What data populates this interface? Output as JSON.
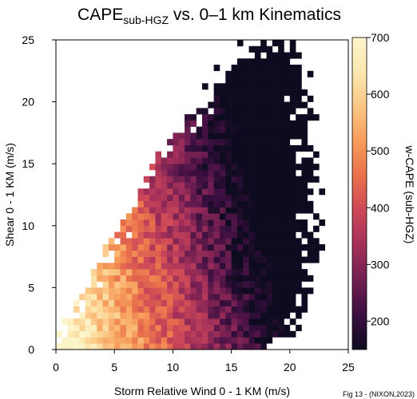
{
  "chart_data": {
    "type": "heatmap",
    "title": {
      "main": "CAPE",
      "subscript": "sub-HGZ",
      "rest": " vs. 0–1 km Kinematics"
    },
    "xlabel": "Storm Relative Wind 0 - 1 KM (m/s)",
    "ylabel": "Shear 0 - 1 KM (m/s)",
    "xlim": [
      0,
      25
    ],
    "ylim": [
      0,
      25
    ],
    "bin_size": 0.5,
    "x_ticks": [
      0,
      5,
      10,
      15,
      20,
      25
    ],
    "y_ticks": [
      0,
      5,
      10,
      15,
      20,
      25
    ],
    "colorbar": {
      "label": "w-CAPE (sub-HGZ)",
      "range": [
        150,
        700
      ],
      "ticks": [
        200,
        300,
        400,
        500,
        600,
        700
      ],
      "colormap": [
        "#0e0b20",
        "#3b0f40",
        "#721f51",
        "#a3305a",
        "#cc4758",
        "#e9704c",
        "#f79c5a",
        "#fbc684",
        "#fbe8b0",
        "#fcf5cc"
      ]
    },
    "caption": "Fig 13 - (NIXON,2023)"
  }
}
